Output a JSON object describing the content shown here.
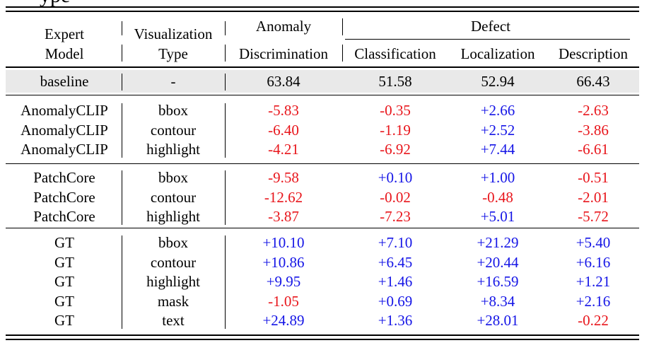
{
  "caption_fragment": "ype",
  "header": {
    "expert_model": [
      "Expert",
      "Model"
    ],
    "visualization_type": [
      "Visualization",
      "Type"
    ],
    "anomaly_group": "Anomaly",
    "defect_group": "Defect",
    "columns": [
      "Discrimination",
      "Classification",
      "Localization",
      "Description"
    ]
  },
  "baseline": {
    "model": "baseline",
    "type": "-",
    "values": [
      "63.84",
      "51.58",
      "52.94",
      "66.43"
    ]
  },
  "groups": [
    {
      "rows": [
        {
          "model": "AnomalyCLIP",
          "type": "bbox",
          "values": [
            "-5.83",
            "-0.35",
            "+2.66",
            "-2.63"
          ]
        },
        {
          "model": "AnomalyCLIP",
          "type": "contour",
          "values": [
            "-6.40",
            "-1.19",
            "+2.52",
            "-3.86"
          ]
        },
        {
          "model": "AnomalyCLIP",
          "type": "highlight",
          "values": [
            "-4.21",
            "-6.92",
            "+7.44",
            "-6.61"
          ]
        }
      ]
    },
    {
      "rows": [
        {
          "model": "PatchCore",
          "type": "bbox",
          "values": [
            "-9.58",
            "+0.10",
            "+1.00",
            "-0.51"
          ]
        },
        {
          "model": "PatchCore",
          "type": "contour",
          "values": [
            "-12.62",
            "-0.02",
            "-0.48",
            "-2.01"
          ]
        },
        {
          "model": "PatchCore",
          "type": "highlight",
          "values": [
            "-3.87",
            "-7.23",
            "+5.01",
            "-5.72"
          ]
        }
      ]
    },
    {
      "rows": [
        {
          "model": "GT",
          "type": "bbox",
          "values": [
            "+10.10",
            "+7.10",
            "+21.29",
            "+5.40"
          ]
        },
        {
          "model": "GT",
          "type": "contour",
          "values": [
            "+10.86",
            "+6.45",
            "+20.44",
            "+6.16"
          ]
        },
        {
          "model": "GT",
          "type": "highlight",
          "values": [
            "+9.95",
            "+1.46",
            "+16.59",
            "+1.21"
          ]
        },
        {
          "model": "GT",
          "type": "mask",
          "values": [
            "-1.05",
            "+0.69",
            "+8.34",
            "+2.16"
          ]
        },
        {
          "model": "GT",
          "type": "text",
          "values": [
            "+24.89",
            "+1.36",
            "+28.01",
            "-0.22"
          ]
        }
      ]
    }
  ],
  "colors": {
    "negative": "#e8151b",
    "positive": "#1515e6",
    "baseline_shade": "#e9e9e9"
  }
}
